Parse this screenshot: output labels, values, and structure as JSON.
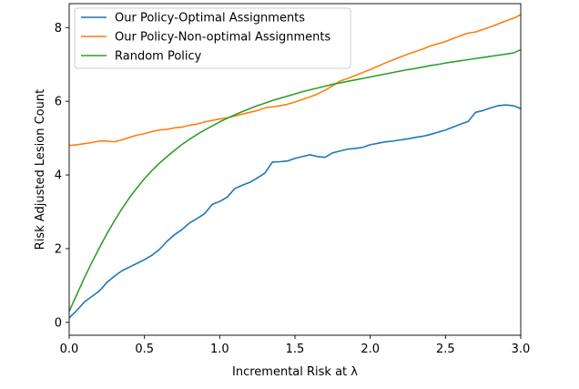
{
  "chart_data": {
    "type": "line",
    "title": "",
    "xlabel": "Incremental Risk at λ",
    "ylabel": "Risk Adjusted Lesion Count",
    "xlim": [
      0.0,
      3.0
    ],
    "ylim": [
      -0.35,
      8.65
    ],
    "xticks": [
      0.0,
      0.5,
      1.0,
      1.5,
      2.0,
      2.5,
      3.0
    ],
    "xtick_labels": [
      "0.0",
      "0.5",
      "1.0",
      "1.5",
      "2.0",
      "2.5",
      "3.0"
    ],
    "yticks": [
      0,
      2,
      4,
      6,
      8
    ],
    "ytick_labels": [
      "0",
      "2",
      "4",
      "6",
      "8"
    ],
    "grid": false,
    "legend_position": "top-left",
    "series": [
      {
        "name": "Our Policy-Optimal Assignments",
        "color": "#1f77b4",
        "x": [
          0.0,
          0.05,
          0.1,
          0.15,
          0.2,
          0.25,
          0.3,
          0.35,
          0.4,
          0.45,
          0.5,
          0.55,
          0.6,
          0.65,
          0.7,
          0.75,
          0.8,
          0.85,
          0.9,
          0.95,
          1.0,
          1.05,
          1.1,
          1.15,
          1.2,
          1.25,
          1.3,
          1.35,
          1.4,
          1.45,
          1.5,
          1.55,
          1.6,
          1.65,
          1.7,
          1.75,
          1.8,
          1.85,
          1.9,
          1.95,
          2.0,
          2.05,
          2.1,
          2.15,
          2.2,
          2.25,
          2.3,
          2.35,
          2.4,
          2.45,
          2.5,
          2.55,
          2.6,
          2.65,
          2.7,
          2.75,
          2.8,
          2.85,
          2.9,
          2.95,
          3.0
        ],
        "y": [
          0.12,
          0.32,
          0.55,
          0.7,
          0.85,
          1.08,
          1.25,
          1.4,
          1.5,
          1.6,
          1.7,
          1.82,
          1.98,
          2.2,
          2.38,
          2.52,
          2.7,
          2.82,
          2.95,
          3.2,
          3.28,
          3.4,
          3.63,
          3.72,
          3.8,
          3.92,
          4.05,
          4.35,
          4.36,
          4.38,
          4.45,
          4.5,
          4.55,
          4.5,
          4.48,
          4.6,
          4.65,
          4.7,
          4.72,
          4.75,
          4.82,
          4.86,
          4.9,
          4.92,
          4.95,
          4.98,
          5.02,
          5.05,
          5.1,
          5.16,
          5.22,
          5.3,
          5.38,
          5.45,
          5.7,
          5.75,
          5.82,
          5.88,
          5.9,
          5.88,
          5.8
        ]
      },
      {
        "name": "Our Policy-Non-optimal Assignments",
        "color": "#ff7f0e",
        "x": [
          0.0,
          0.05,
          0.1,
          0.15,
          0.2,
          0.25,
          0.3,
          0.35,
          0.4,
          0.45,
          0.5,
          0.55,
          0.6,
          0.65,
          0.7,
          0.75,
          0.8,
          0.85,
          0.9,
          0.95,
          1.0,
          1.05,
          1.1,
          1.15,
          1.2,
          1.25,
          1.3,
          1.35,
          1.4,
          1.45,
          1.5,
          1.55,
          1.6,
          1.65,
          1.7,
          1.75,
          1.8,
          1.85,
          1.9,
          1.95,
          2.0,
          2.05,
          2.1,
          2.15,
          2.2,
          2.25,
          2.3,
          2.35,
          2.4,
          2.45,
          2.5,
          2.55,
          2.6,
          2.65,
          2.7,
          2.75,
          2.8,
          2.85,
          2.9,
          2.95,
          3.0
        ],
        "y": [
          4.8,
          4.82,
          4.85,
          4.88,
          4.92,
          4.92,
          4.9,
          4.95,
          5.02,
          5.08,
          5.12,
          5.18,
          5.22,
          5.24,
          5.28,
          5.3,
          5.35,
          5.38,
          5.44,
          5.48,
          5.52,
          5.55,
          5.6,
          5.65,
          5.7,
          5.75,
          5.82,
          5.85,
          5.88,
          5.92,
          5.98,
          6.05,
          6.12,
          6.2,
          6.3,
          6.42,
          6.55,
          6.62,
          6.7,
          6.78,
          6.86,
          6.95,
          7.04,
          7.12,
          7.2,
          7.28,
          7.35,
          7.42,
          7.5,
          7.56,
          7.62,
          7.7,
          7.78,
          7.85,
          7.88,
          7.95,
          8.02,
          8.1,
          8.18,
          8.25,
          8.35
        ]
      },
      {
        "name": "Random Policy",
        "color": "#2ca02c",
        "x": [
          0.0,
          0.05,
          0.1,
          0.15,
          0.2,
          0.25,
          0.3,
          0.35,
          0.4,
          0.45,
          0.5,
          0.55,
          0.6,
          0.65,
          0.7,
          0.75,
          0.8,
          0.85,
          0.9,
          0.95,
          1.0,
          1.05,
          1.1,
          1.15,
          1.2,
          1.25,
          1.3,
          1.35,
          1.4,
          1.45,
          1.5,
          1.55,
          1.6,
          1.65,
          1.7,
          1.75,
          1.8,
          1.85,
          1.9,
          1.95,
          2.0,
          2.05,
          2.1,
          2.15,
          2.2,
          2.25,
          2.3,
          2.35,
          2.4,
          2.45,
          2.5,
          2.55,
          2.6,
          2.65,
          2.7,
          2.75,
          2.8,
          2.85,
          2.9,
          2.95,
          3.0
        ],
        "y": [
          0.3,
          0.75,
          1.2,
          1.62,
          2.02,
          2.4,
          2.75,
          3.08,
          3.38,
          3.65,
          3.9,
          4.12,
          4.32,
          4.5,
          4.67,
          4.83,
          4.97,
          5.1,
          5.22,
          5.33,
          5.44,
          5.54,
          5.63,
          5.72,
          5.8,
          5.88,
          5.95,
          6.02,
          6.08,
          6.14,
          6.2,
          6.26,
          6.31,
          6.36,
          6.41,
          6.46,
          6.5,
          6.54,
          6.58,
          6.62,
          6.66,
          6.7,
          6.74,
          6.78,
          6.82,
          6.86,
          6.89,
          6.93,
          6.97,
          7.0,
          7.04,
          7.07,
          7.1,
          7.13,
          7.16,
          7.19,
          7.22,
          7.25,
          7.28,
          7.31,
          7.4
        ]
      }
    ]
  }
}
